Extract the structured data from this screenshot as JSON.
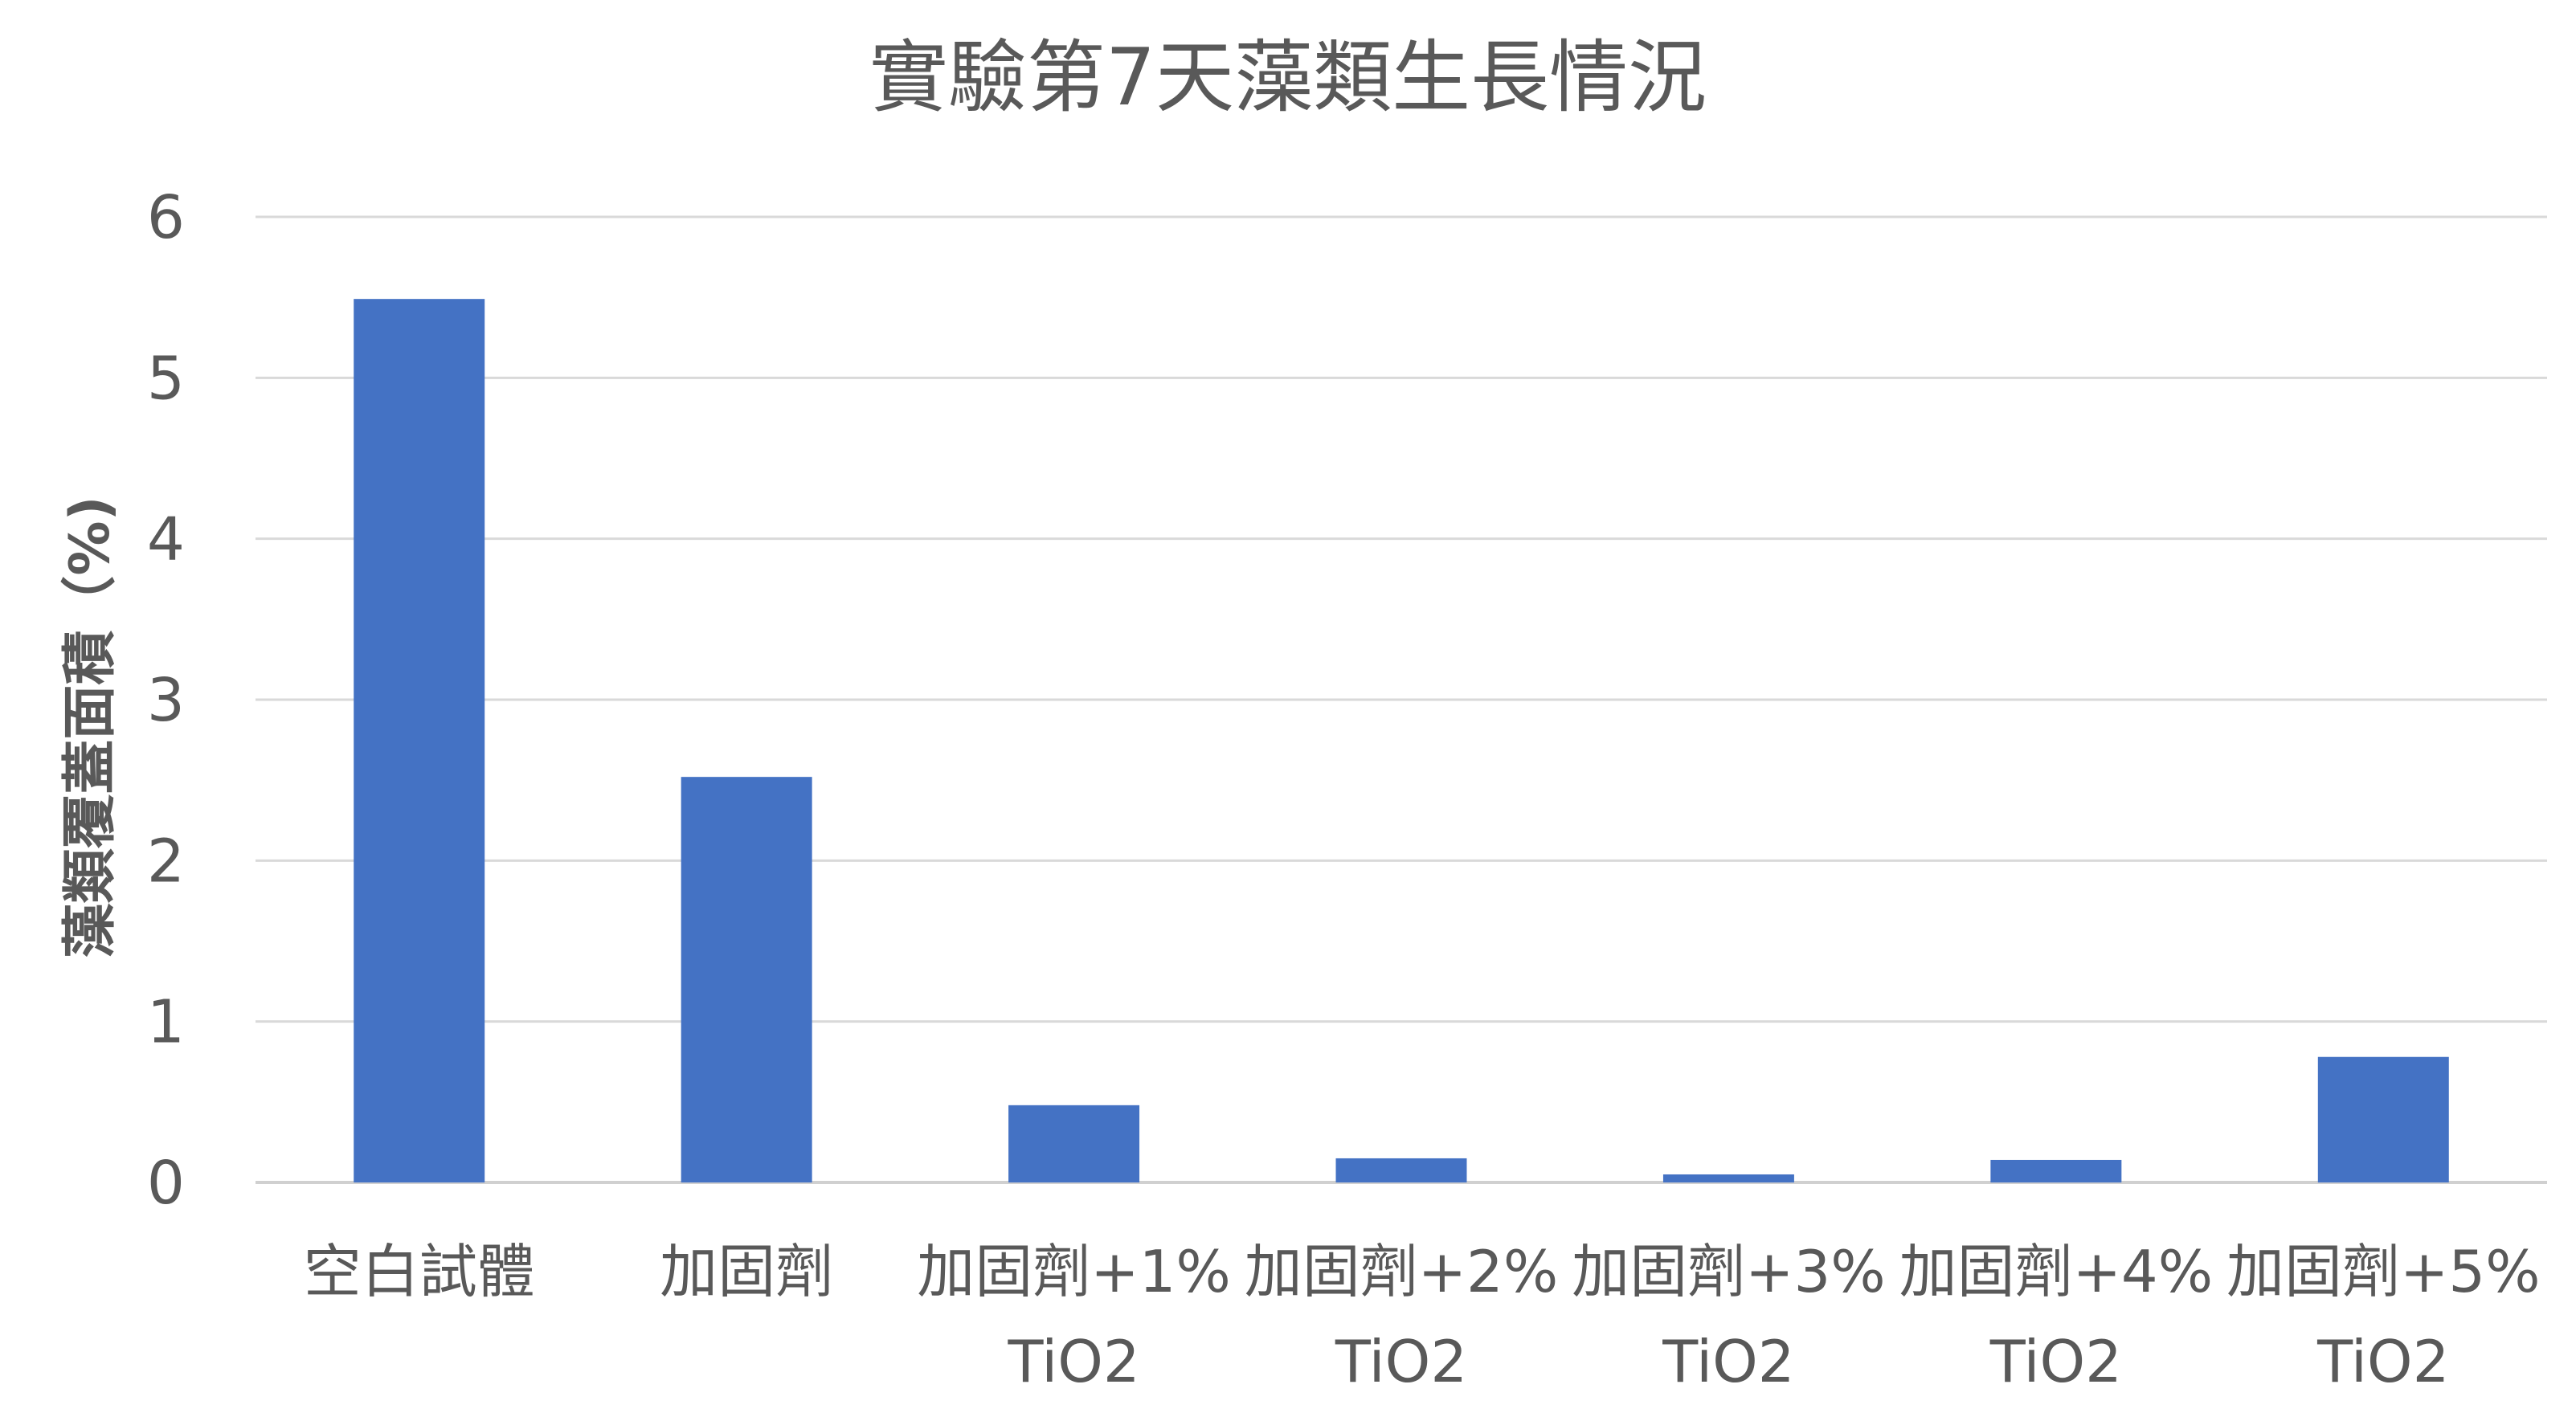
{
  "chart_data": {
    "type": "bar",
    "title": "實驗第7天藻類生長情況",
    "xlabel": "",
    "ylabel": "藻類覆蓋面積（%)",
    "ylim": [
      0,
      6
    ],
    "yticks": [
      0,
      1,
      2,
      3,
      4,
      5,
      6
    ],
    "grid": true,
    "legend": "none",
    "bar_color": "#4472C4",
    "categories": [
      [
        "空白試體"
      ],
      [
        "加固劑"
      ],
      [
        "加固劑+1%",
        "TiO2"
      ],
      [
        "加固劑+2%",
        "TiO2"
      ],
      [
        "加固劑+3%",
        "TiO2"
      ],
      [
        "加固劑+4%",
        "TiO2"
      ],
      [
        "加固劑+5%",
        "TiO2"
      ]
    ],
    "values": [
      5.49,
      2.52,
      0.48,
      0.15,
      0.05,
      0.14,
      0.78
    ]
  }
}
